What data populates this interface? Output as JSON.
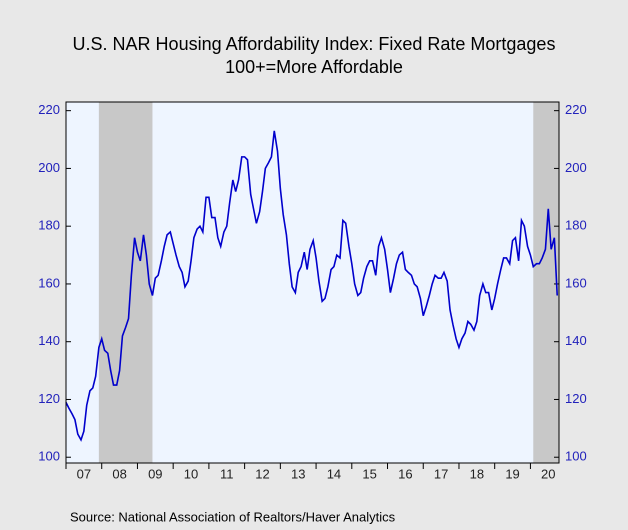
{
  "chart_data": {
    "type": "line",
    "title": "U.S. NAR Housing Affordability Index: Fixed Rate Mortgages",
    "subtitle": "100+=More Affordable",
    "source": "Source:  National Association of Realtors/Haver Analytics",
    "xlim": [
      2007,
      2020.8
    ],
    "xticks": [
      {
        "value": 2007.5,
        "label": "07"
      },
      {
        "value": 2008.5,
        "label": "08"
      },
      {
        "value": 2009.5,
        "label": "09"
      },
      {
        "value": 2010.5,
        "label": "10"
      },
      {
        "value": 2011.5,
        "label": "11"
      },
      {
        "value": 2012.5,
        "label": "12"
      },
      {
        "value": 2013.5,
        "label": "13"
      },
      {
        "value": 2014.5,
        "label": "14"
      },
      {
        "value": 2015.5,
        "label": "15"
      },
      {
        "value": 2016.5,
        "label": "16"
      },
      {
        "value": 2017.5,
        "label": "17"
      },
      {
        "value": 2018.5,
        "label": "18"
      },
      {
        "value": 2019.5,
        "label": "19"
      },
      {
        "value": 2020.5,
        "label": "20"
      }
    ],
    "ylim": [
      98,
      223
    ],
    "yticks": [
      100,
      120,
      140,
      160,
      180,
      200,
      220
    ],
    "recessions": [
      [
        2007.92,
        2009.42
      ],
      [
        2020.08,
        2020.8
      ]
    ],
    "recession_color": "#c8c8c8",
    "background": "#eef5ff",
    "x": [
      2007.0,
      2007.08,
      2007.17,
      2007.25,
      2007.33,
      2007.42,
      2007.5,
      2007.58,
      2007.67,
      2007.75,
      2007.83,
      2007.92,
      2008.0,
      2008.08,
      2008.17,
      2008.25,
      2008.33,
      2008.42,
      2008.5,
      2008.58,
      2008.67,
      2008.75,
      2008.83,
      2008.92,
      2009.0,
      2009.08,
      2009.17,
      2009.25,
      2009.33,
      2009.42,
      2009.5,
      2009.58,
      2009.67,
      2009.75,
      2009.83,
      2009.92,
      2010.0,
      2010.08,
      2010.17,
      2010.25,
      2010.33,
      2010.42,
      2010.5,
      2010.58,
      2010.67,
      2010.75,
      2010.83,
      2010.92,
      2011.0,
      2011.08,
      2011.17,
      2011.25,
      2011.33,
      2011.42,
      2011.5,
      2011.58,
      2011.67,
      2011.75,
      2011.83,
      2011.92,
      2012.0,
      2012.08,
      2012.17,
      2012.25,
      2012.33,
      2012.42,
      2012.5,
      2012.58,
      2012.67,
      2012.75,
      2012.83,
      2012.92,
      2013.0,
      2013.08,
      2013.17,
      2013.25,
      2013.33,
      2013.42,
      2013.5,
      2013.58,
      2013.67,
      2013.75,
      2013.83,
      2013.92,
      2014.0,
      2014.08,
      2014.17,
      2014.25,
      2014.33,
      2014.42,
      2014.5,
      2014.58,
      2014.67,
      2014.75,
      2014.83,
      2014.92,
      2015.0,
      2015.08,
      2015.17,
      2015.25,
      2015.33,
      2015.42,
      2015.5,
      2015.58,
      2015.67,
      2015.75,
      2015.83,
      2015.92,
      2016.0,
      2016.08,
      2016.17,
      2016.25,
      2016.33,
      2016.42,
      2016.5,
      2016.58,
      2016.67,
      2016.75,
      2016.83,
      2016.92,
      2017.0,
      2017.08,
      2017.17,
      2017.25,
      2017.33,
      2017.42,
      2017.5,
      2017.58,
      2017.67,
      2017.75,
      2017.83,
      2017.92,
      2018.0,
      2018.08,
      2018.17,
      2018.25,
      2018.33,
      2018.42,
      2018.5,
      2018.58,
      2018.67,
      2018.75,
      2018.83,
      2018.92,
      2019.0,
      2019.08,
      2019.17,
      2019.25,
      2019.33,
      2019.42,
      2019.5,
      2019.58,
      2019.67,
      2019.75,
      2019.83,
      2019.92,
      2020.0,
      2020.08,
      2020.17,
      2020.25,
      2020.33,
      2020.42,
      2020.5,
      2020.58,
      2020.67,
      2020.75
    ],
    "series": [
      {
        "name": "Housing Affordability Index",
        "color": "#0000cc",
        "values": [
          119,
          117,
          115,
          113,
          108,
          106,
          109,
          118,
          123,
          124,
          128,
          138,
          141,
          137,
          136,
          130,
          125,
          125,
          130,
          142,
          145,
          148,
          163,
          176,
          171,
          168,
          177,
          170,
          160,
          156,
          162,
          163,
          168,
          173,
          177,
          178,
          174,
          170,
          166,
          164,
          159,
          161,
          168,
          176,
          179,
          180,
          178,
          190,
          190,
          183,
          183,
          176,
          173,
          178,
          180,
          188,
          196,
          192,
          196,
          204,
          204,
          203,
          191,
          186,
          181,
          185,
          192,
          200,
          202,
          204,
          213,
          206,
          193,
          184,
          177,
          167,
          159,
          157,
          164,
          166,
          171,
          165,
          172,
          175,
          169,
          161,
          154,
          155,
          159,
          165,
          166,
          170,
          169,
          182,
          181,
          173,
          167,
          160,
          156,
          157,
          162,
          166,
          168,
          168,
          163,
          173,
          176,
          172,
          165,
          157,
          162,
          167,
          170,
          171,
          165,
          164,
          163,
          160,
          159,
          155,
          149,
          152,
          156,
          160,
          163,
          162,
          162,
          164,
          161,
          151,
          146,
          141,
          138,
          141,
          143,
          147,
          146,
          144,
          147,
          156,
          160,
          157,
          157,
          151,
          155,
          160,
          165,
          169,
          169,
          167,
          175,
          176,
          168,
          182,
          180,
          173,
          170,
          166,
          167,
          167,
          169,
          172,
          186,
          172,
          176,
          156
        ]
      }
    ]
  }
}
